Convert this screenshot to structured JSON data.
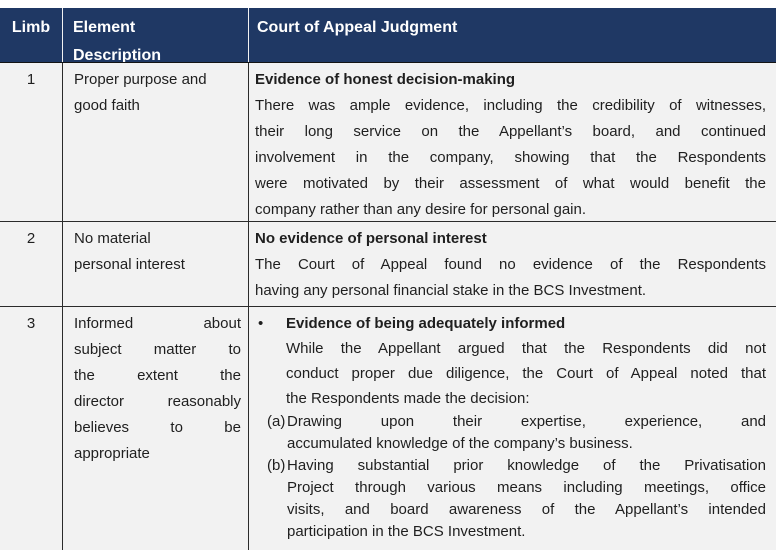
{
  "table": {
    "header": {
      "limb": "Limb",
      "element_lines": [
        "Element",
        "Description"
      ],
      "judgment": "Court of Appeal Judgment"
    },
    "rows": [
      {
        "limb": "1",
        "element_lines": [
          "Proper purpose and",
          "good faith"
        ],
        "heading": "Evidence of honest decision-making",
        "body_lines": [
          "There was ample evidence, including the credibility of witnesses,",
          "their long service on the Appellant’s board, and continued",
          "involvement in the company, showing that the Respondents",
          "were motivated by their assessment of what would benefit the",
          "company rather than any desire for personal gain."
        ]
      },
      {
        "limb": "2",
        "element_lines": [
          "No material",
          "personal interest"
        ],
        "heading": "No evidence of personal interest",
        "body_lines": [
          "The Court of Appeal found no evidence of the Respondents",
          "having any personal financial stake in the BCS Investment."
        ]
      },
      {
        "limb": "3",
        "element_lines": [
          "Informed about",
          "subject matter to",
          "the extent the",
          "director reasonably",
          "believes to be",
          "appropriate"
        ],
        "bullet": "•",
        "heading": "Evidence of being adequately informed",
        "body_lines": [
          "While the Appellant argued that the Respondents did not",
          "conduct proper due diligence, the Court of Appeal noted that",
          "the Respondents made the decision:"
        ],
        "subitems": [
          {
            "label": "(a)",
            "text_lines": [
              "Drawing upon their expertise, experience, and",
              "accumulated knowledge of the company’s business."
            ]
          },
          {
            "label": "(b)",
            "text_lines": [
              "Having substantial prior knowledge of the Privatisation",
              "Project through various means including meetings, office",
              "visits, and board awareness of the Appellant’s intended",
              "participation in the BCS Investment."
            ]
          }
        ]
      }
    ],
    "colors": {
      "header_bg": "#1F3864",
      "header_text": "#FFFFFF",
      "cell_bg": "#F2F2F2",
      "body_text": "#1F1F1F",
      "grid_line": "#2B2B2B",
      "header_divider": "#F2F2F2"
    }
  }
}
